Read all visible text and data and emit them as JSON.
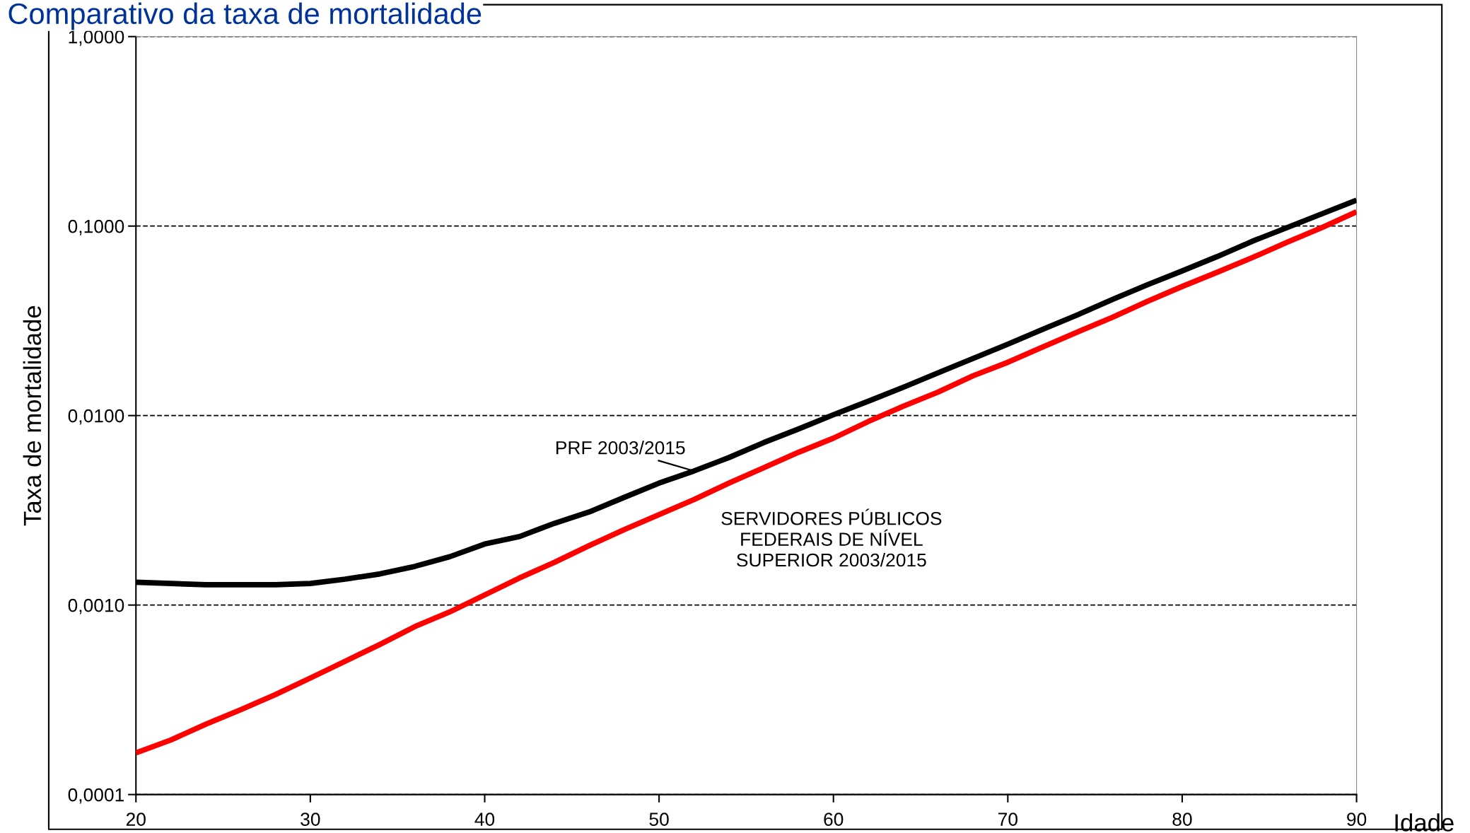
{
  "chart_data": {
    "type": "line",
    "title": "Comparativo da taxa de mortalidade",
    "xlabel": "Idade",
    "ylabel": "Taxa de mortalidade",
    "log": "y",
    "grid": "y",
    "legend": false,
    "marker": "none",
    "line_style": "solid",
    "x": [
      20,
      22,
      24,
      26,
      28,
      30,
      32,
      34,
      36,
      38,
      40,
      42,
      44,
      46,
      48,
      50,
      52,
      54,
      56,
      58,
      60,
      62,
      64,
      66,
      68,
      70,
      72,
      74,
      76,
      78,
      80,
      82,
      84,
      86,
      88,
      90
    ],
    "series": [
      {
        "name": "PRF 2003/2015",
        "color": "#000000",
        "values": [
          0.00132,
          0.0013,
          0.00128,
          0.00128,
          0.00128,
          0.0013,
          0.00137,
          0.00146,
          0.0016,
          0.0018,
          0.0021,
          0.0023,
          0.0027,
          0.0031,
          0.0037,
          0.0044,
          0.0051,
          0.006,
          0.0072,
          0.0085,
          0.0101,
          0.0119,
          0.0141,
          0.0168,
          0.02,
          0.0238,
          0.0285,
          0.034,
          0.041,
          0.049,
          0.058,
          0.069,
          0.083,
          0.098,
          0.116,
          0.137
        ]
      },
      {
        "name": "SERVIDORES PÚBLICOS FEDERAIS DE NÍVEL SUPERIOR 2003/2015",
        "color": "#ff0000",
        "values": [
          0.000166,
          0.000194,
          0.000235,
          0.00028,
          0.000337,
          0.000412,
          0.000505,
          0.00062,
          0.00077,
          0.00092,
          0.00113,
          0.00139,
          0.00168,
          0.00206,
          0.0025,
          0.003,
          0.0036,
          0.0044,
          0.0053,
          0.0064,
          0.0076,
          0.0093,
          0.0112,
          0.0133,
          0.0162,
          0.0191,
          0.023,
          0.0276,
          0.033,
          0.04,
          0.048,
          0.057,
          0.068,
          0.082,
          0.098,
          0.119
        ]
      }
    ],
    "xlim": [
      20,
      90
    ],
    "xticks": [
      20,
      30,
      40,
      50,
      60,
      70,
      80,
      90
    ],
    "ylim": [
      0.0001,
      1
    ],
    "yticks": [
      {
        "value": 0.0001,
        "label": "0,0001"
      },
      {
        "value": 0.001,
        "label": "0,0010"
      },
      {
        "value": 0.01,
        "label": "0,0100"
      },
      {
        "value": 0.1,
        "label": "0,1000"
      },
      {
        "value": 1,
        "label": "1,0000"
      }
    ]
  }
}
